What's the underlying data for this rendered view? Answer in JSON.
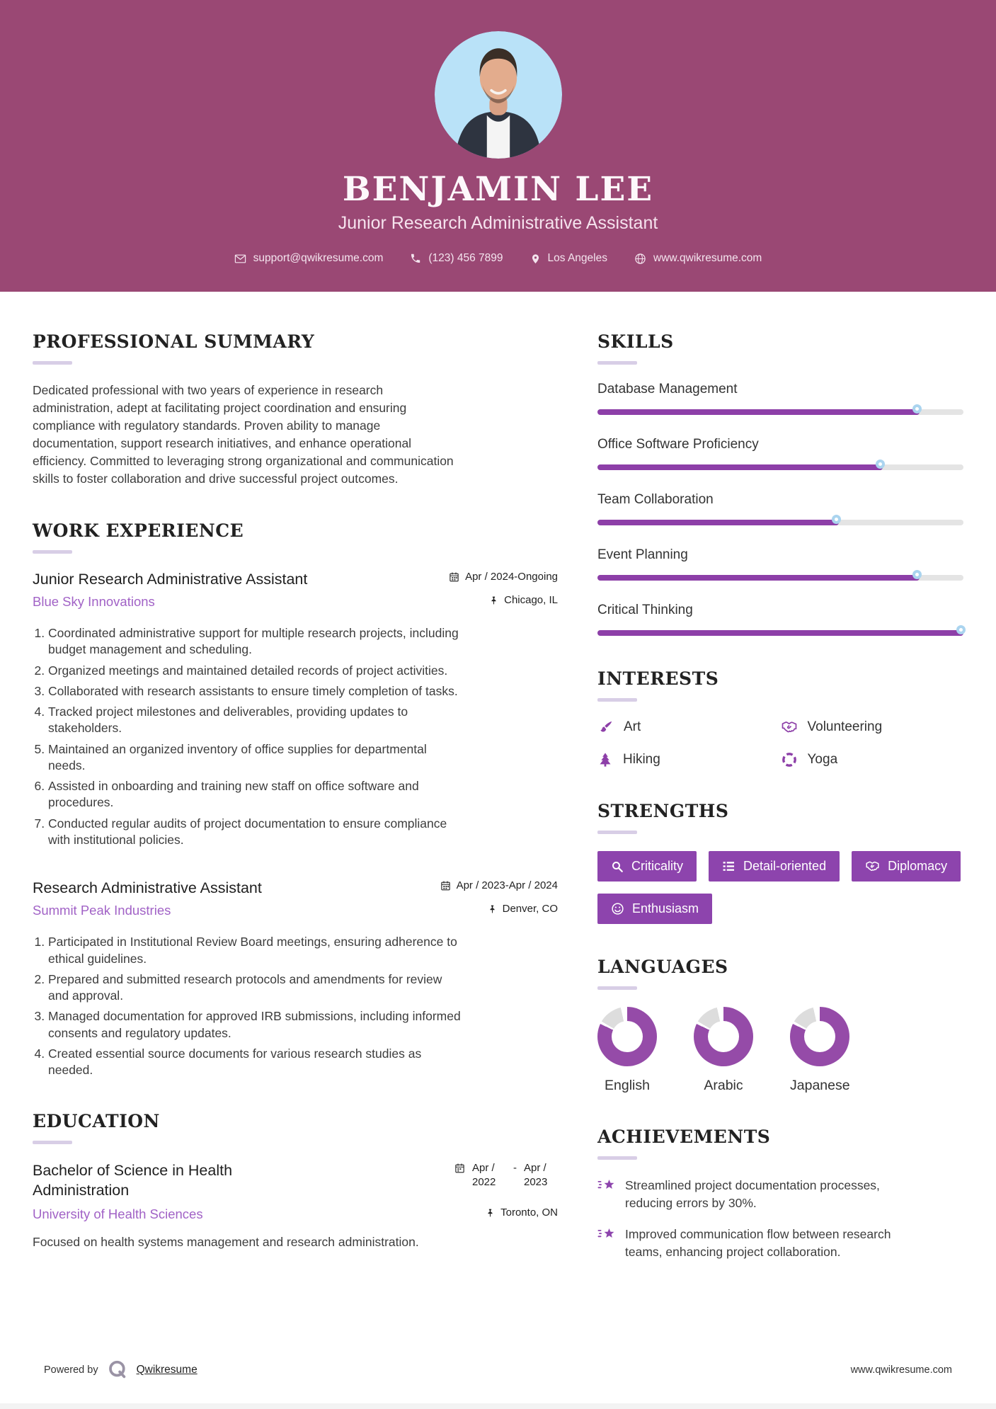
{
  "colors": {
    "header_bg": "#9a4874",
    "accent_purple": "#8d44ad",
    "bar_purple": "#8d3fa8",
    "donut_purple": "#954ba8",
    "donut_gray": "#dddddd",
    "link_purple": "#a162c6",
    "knob_ring_blue": "#aad4ef",
    "heading_underline": "#d8cee6",
    "photo_bg_blue": "#b9e2f8"
  },
  "header": {
    "name": "BENJAMIN LEE",
    "title": "Junior Research Administrative Assistant",
    "contact": [
      {
        "icon": "email-icon",
        "text": "support@qwikresume.com"
      },
      {
        "icon": "phone-icon",
        "text": "(123) 456 7899"
      },
      {
        "icon": "location-icon",
        "text": "Los Angeles"
      },
      {
        "icon": "globe-icon",
        "text": "www.qwikresume.com"
      }
    ]
  },
  "left": {
    "summary": {
      "heading": "PROFESSIONAL SUMMARY",
      "text": "Dedicated professional with two years of experience in research administration, adept at facilitating project coordination and ensuring compliance with regulatory standards. Proven ability to manage documentation, support research initiatives, and enhance operational efficiency. Committed to leveraging strong organizational and communication skills to foster collaboration and drive successful project outcomes."
    },
    "experience": {
      "heading": "WORK EXPERIENCE",
      "jobs": [
        {
          "title": "Junior Research Administrative Assistant",
          "company": "Blue Sky Innovations",
          "dates": "Apr / 2024-Ongoing",
          "dates_icon": "calendar-icon",
          "location": "Chicago, IL",
          "location_icon": "pushpin-icon",
          "bullets": [
            "Coordinated administrative support for multiple research projects, including budget management and scheduling.",
            "Organized meetings and maintained detailed records of project activities.",
            "Collaborated with research assistants to ensure timely completion of tasks.",
            "Tracked project milestones and deliverables, providing updates to stakeholders.",
            "Maintained an organized inventory of office supplies for departmental needs.",
            "Assisted in onboarding and training new staff on office software and procedures.",
            "Conducted regular audits of project documentation to ensure compliance with institutional policies."
          ]
        },
        {
          "title": "Research Administrative Assistant",
          "company": "Summit Peak Industries",
          "dates": "Apr / 2023-Apr / 2024",
          "dates_icon": "calendar-icon",
          "location": "Denver, CO",
          "location_icon": "pushpin-icon",
          "bullets": [
            "Participated in Institutional Review Board meetings, ensuring adherence to ethical guidelines.",
            "Prepared and submitted research protocols and amendments for review and approval.",
            "Managed documentation for approved IRB submissions, including informed consents and regulatory updates.",
            "Created essential source documents for various research studies as needed."
          ]
        }
      ]
    },
    "education": {
      "heading": "EDUCATION",
      "degree": "Bachelor of Science in Health Administration",
      "school": "University of Health Sciences",
      "date_start": "Apr / 2022",
      "date_end": "Apr / 2023",
      "dates_icon": "calendar-icon",
      "location": "Toronto, ON",
      "location_icon": "pushpin-icon",
      "description": "Focused on health systems management and research administration."
    }
  },
  "right": {
    "skills": {
      "heading": "SKILLS",
      "items": [
        {
          "name": "Database Management",
          "percent": 88
        },
        {
          "name": "Office Software Proficiency",
          "percent": 78
        },
        {
          "name": "Team Collaboration",
          "percent": 66
        },
        {
          "name": "Event Planning",
          "percent": 88
        },
        {
          "name": "Critical Thinking",
          "percent": 100
        }
      ]
    },
    "interests": {
      "heading": "INTERESTS",
      "items": [
        {
          "icon": "paintbrush-icon",
          "label": "Art"
        },
        {
          "icon": "handshake-icon",
          "label": "Volunteering"
        },
        {
          "icon": "pine-tree-icon",
          "label": "Hiking"
        },
        {
          "icon": "wheel-icon",
          "label": "Yoga"
        }
      ]
    },
    "strengths": {
      "heading": "STRENGTHS",
      "items": [
        {
          "icon": "magnifier-icon",
          "label": "Criticality"
        },
        {
          "icon": "list-icon",
          "label": "Detail-oriented"
        },
        {
          "icon": "handshake-icon",
          "label": "Diplomacy"
        },
        {
          "icon": "smiley-icon",
          "label": "Enthusiasm"
        }
      ]
    },
    "languages": {
      "heading": "LANGUAGES",
      "items": [
        {
          "label": "English",
          "percent": 82
        },
        {
          "label": "Arabic",
          "percent": 82
        },
        {
          "label": "Japanese",
          "percent": 82
        }
      ]
    },
    "achievements": {
      "heading": "ACHIEVEMENTS",
      "icon": "shooting-star-icon",
      "items": [
        "Streamlined project documentation processes, reducing errors by 30%.",
        "Improved communication flow between research teams, enhancing project collaboration."
      ]
    }
  },
  "footer": {
    "powered_by": "Powered by",
    "brand": "Qwikresume",
    "website": "www.qwikresume.com"
  }
}
